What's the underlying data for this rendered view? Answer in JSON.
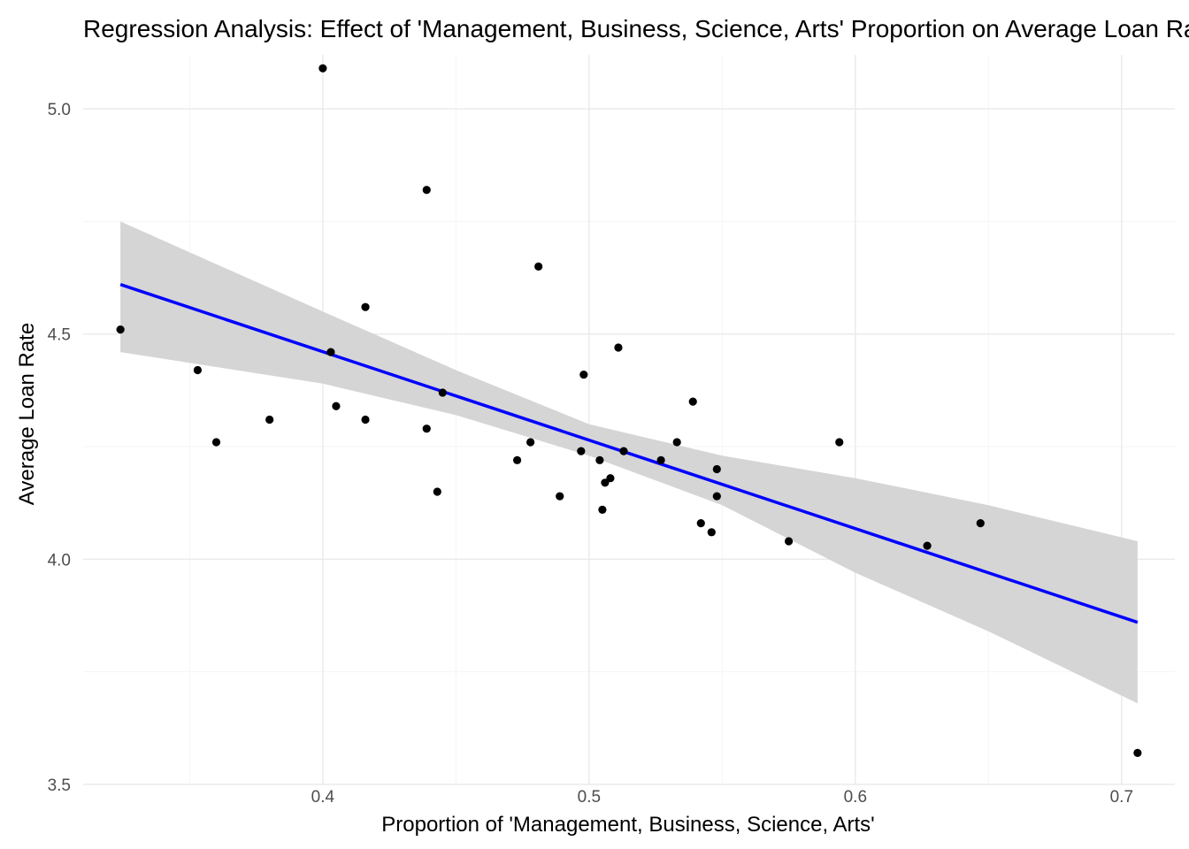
{
  "chart_data": {
    "type": "scatter",
    "title": "Regression Analysis: Effect of 'Management, Business, Science, Arts' Proportion on Average Loan Rate",
    "xlabel": "Proportion of 'Management, Business, Science, Arts'",
    "ylabel": "Average Loan Rate",
    "xlim": [
      0.31,
      0.72
    ],
    "ylim": [
      3.5,
      5.12
    ],
    "x_ticks": [
      0.4,
      0.5,
      0.6,
      0.7
    ],
    "x_tick_labels": [
      "0.4",
      "0.5",
      "0.6",
      "0.7"
    ],
    "y_ticks": [
      3.5,
      4.0,
      4.5,
      5.0
    ],
    "y_tick_labels": [
      "3.5",
      "4.0",
      "4.5",
      "5.0"
    ],
    "grid": true,
    "legend": "none",
    "points": [
      {
        "x": 0.324,
        "y": 4.51
      },
      {
        "x": 0.353,
        "y": 4.42
      },
      {
        "x": 0.36,
        "y": 4.26
      },
      {
        "x": 0.38,
        "y": 4.31
      },
      {
        "x": 0.4,
        "y": 5.09
      },
      {
        "x": 0.403,
        "y": 4.46
      },
      {
        "x": 0.405,
        "y": 4.34
      },
      {
        "x": 0.416,
        "y": 4.56
      },
      {
        "x": 0.416,
        "y": 4.31
      },
      {
        "x": 0.439,
        "y": 4.82
      },
      {
        "x": 0.439,
        "y": 4.29
      },
      {
        "x": 0.443,
        "y": 4.15
      },
      {
        "x": 0.445,
        "y": 4.37
      },
      {
        "x": 0.473,
        "y": 4.22
      },
      {
        "x": 0.478,
        "y": 4.26
      },
      {
        "x": 0.481,
        "y": 4.65
      },
      {
        "x": 0.489,
        "y": 4.14
      },
      {
        "x": 0.497,
        "y": 4.24
      },
      {
        "x": 0.498,
        "y": 4.41
      },
      {
        "x": 0.504,
        "y": 4.22
      },
      {
        "x": 0.505,
        "y": 4.11
      },
      {
        "x": 0.506,
        "y": 4.17
      },
      {
        "x": 0.508,
        "y": 4.18
      },
      {
        "x": 0.511,
        "y": 4.47
      },
      {
        "x": 0.513,
        "y": 4.24
      },
      {
        "x": 0.527,
        "y": 4.22
      },
      {
        "x": 0.533,
        "y": 4.26
      },
      {
        "x": 0.539,
        "y": 4.35
      },
      {
        "x": 0.542,
        "y": 4.08
      },
      {
        "x": 0.546,
        "y": 4.06
      },
      {
        "x": 0.548,
        "y": 4.2
      },
      {
        "x": 0.548,
        "y": 4.14
      },
      {
        "x": 0.575,
        "y": 4.04
      },
      {
        "x": 0.594,
        "y": 4.26
      },
      {
        "x": 0.627,
        "y": 4.03
      },
      {
        "x": 0.647,
        "y": 4.08
      },
      {
        "x": 0.706,
        "y": 3.57
      }
    ],
    "regression_line": {
      "x": [
        0.324,
        0.706
      ],
      "y": [
        4.61,
        3.86
      ]
    },
    "confidence_band": {
      "x": [
        0.324,
        0.4,
        0.45,
        0.5,
        0.55,
        0.6,
        0.65,
        0.706
      ],
      "lower": [
        4.46,
        4.39,
        4.32,
        4.23,
        4.12,
        3.97,
        3.84,
        3.68
      ],
      "upper": [
        4.75,
        4.55,
        4.42,
        4.3,
        4.23,
        4.18,
        4.12,
        4.04
      ]
    },
    "colors": {
      "points": "#000000",
      "line": "#0000ff",
      "band": "#d3d3d3",
      "grid_major": "#ebebeb",
      "grid_minor": "#f5f5f5"
    }
  }
}
